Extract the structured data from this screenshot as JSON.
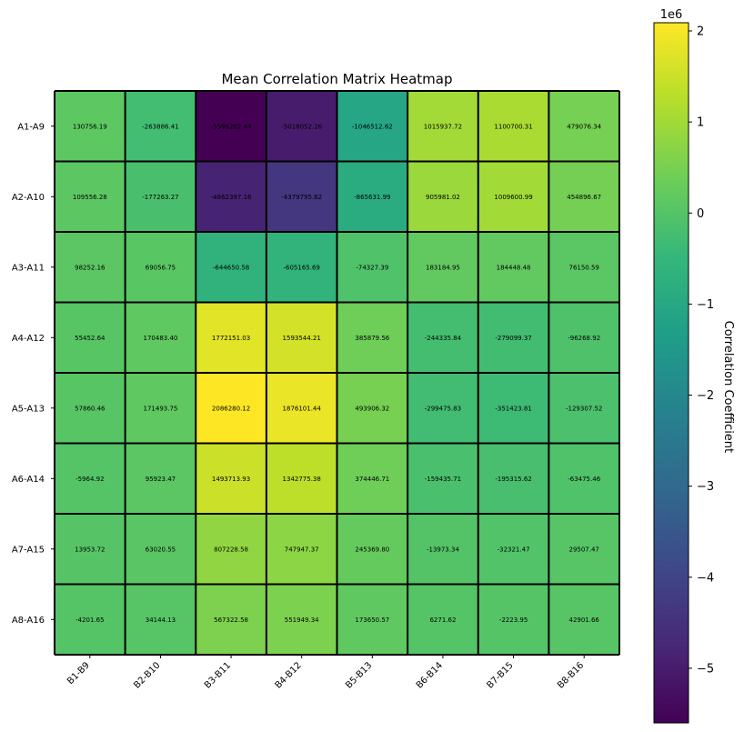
{
  "chart_data": {
    "type": "heatmap",
    "title": "Mean Correlation Matrix Heatmap",
    "colormap": "viridis",
    "x_categories": [
      "B1-B9",
      "B2-B10",
      "B3-B11",
      "B4-B12",
      "B5-B13",
      "B6-B14",
      "B7-B15",
      "B8-B16"
    ],
    "y_categories": [
      "A1-A9",
      "A2-A10",
      "A3-A11",
      "A4-A12",
      "A5-A13",
      "A6-A14",
      "A7-A15",
      "A8-A16"
    ],
    "values": [
      [
        130756.19,
        -263886.41,
        -5596202.44,
        -5018052.26,
        -1046512.62,
        1015937.72,
        1100700.31,
        479076.34
      ],
      [
        109556.28,
        -177263.27,
        -4862397.16,
        -4379795.62,
        -865631.99,
        905981.02,
        1009600.99,
        454896.67
      ],
      [
        98252.16,
        69056.75,
        -644650.58,
        -605165.69,
        -74327.39,
        183184.95,
        184448.48,
        76150.59
      ],
      [
        55452.64,
        170483.4,
        1772151.03,
        1593544.21,
        385879.56,
        -244335.84,
        -279099.37,
        -96268.92
      ],
      [
        57860.46,
        171493.75,
        2086280.12,
        1876101.44,
        493906.32,
        -299475.83,
        -351423.81,
        -129307.52
      ],
      [
        -5964.92,
        95923.47,
        1493713.93,
        1342775.38,
        374446.71,
        -159435.71,
        -195315.62,
        -63475.46
      ],
      [
        13953.72,
        63020.55,
        807228.58,
        747947.37,
        245369.8,
        -13973.34,
        -32321.47,
        29507.47
      ],
      [
        -4201.65,
        34144.13,
        567322.58,
        551949.34,
        173650.57,
        6271.62,
        -2223.95,
        42901.66
      ]
    ],
    "cell_labels": [
      [
        "130756.19",
        "-263886.41",
        "-5596202.44",
        "-5018052.26",
        "-1046512.62",
        "1015937.72",
        "1100700.31",
        "479076.34"
      ],
      [
        "109556.28",
        "-177263.27",
        "-4862397.16",
        "-4379795.62",
        "-865631.99",
        "905981.02",
        "1009600.99",
        "454896.67"
      ],
      [
        "98252.16",
        "69056.75",
        "-644650.58",
        "-605165.69",
        "-74327.39",
        "183184.95",
        "184448.48",
        "76150.59"
      ],
      [
        "55452.64",
        "170483.40",
        "1772151.03",
        "1593544.21",
        "385879.56",
        "-244335.84",
        "-279099.37",
        "-96268.92"
      ],
      [
        "57860.46",
        "171493.75",
        "2086280.12",
        "1876101.44",
        "493906.32",
        "-299475.83",
        "-351423.81",
        "-129307.52"
      ],
      [
        "-5964.92",
        "95923.47",
        "1493713.93",
        "1342775.38",
        "374446.71",
        "-159435.71",
        "-195315.62",
        "-63475.46"
      ],
      [
        "13953.72",
        "63020.55",
        "807228.58",
        "747947.37",
        "245369.80",
        "-13973.34",
        "-32321.47",
        "29507.47"
      ],
      [
        "-4201.65",
        "34144.13",
        "567322.58",
        "551949.34",
        "173650.57",
        "6271.62",
        "-2223.95",
        "42901.66"
      ]
    ],
    "colorbar": {
      "label": "Correlation Coefficient",
      "offset_text": "1e6",
      "min": -5.6,
      "max": 2.09,
      "ticks": [
        2,
        1,
        0,
        -1,
        -2,
        -3,
        -4,
        -5
      ],
      "tick_labels": [
        "2",
        "1",
        "0",
        "−1",
        "−2",
        "−3",
        "−4",
        "−5"
      ]
    }
  }
}
